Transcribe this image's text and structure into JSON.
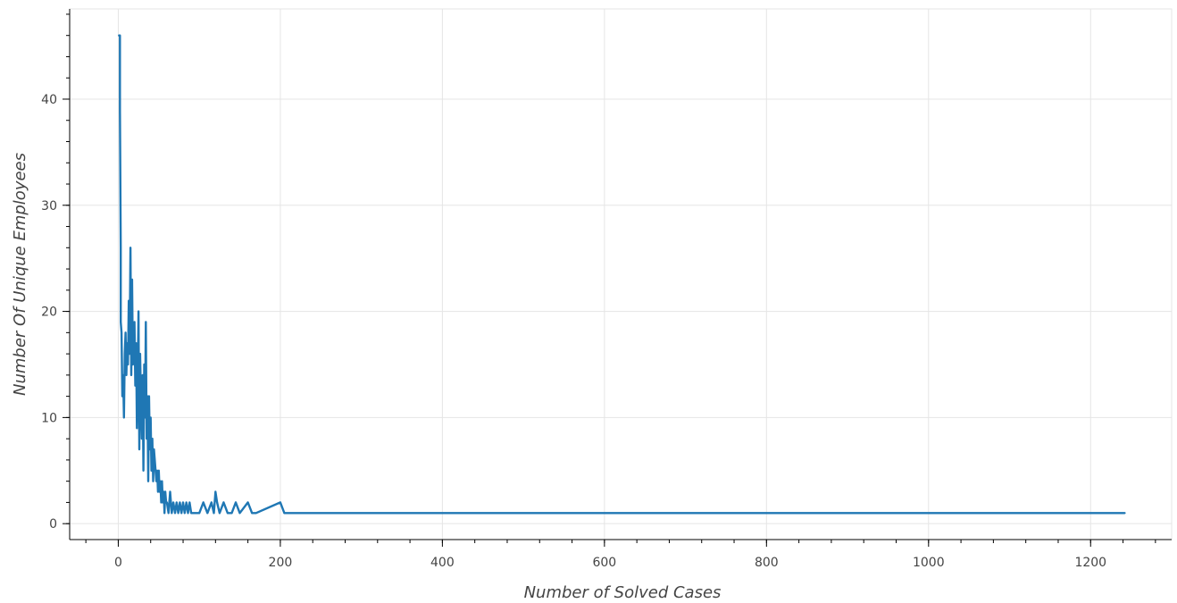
{
  "chart_data": {
    "type": "line",
    "title": "",
    "xlabel": "Number of Solved Cases",
    "ylabel": "Number Of Unique Employees",
    "xlim": [
      -60,
      1300
    ],
    "ylim": [
      -1.5,
      48.5
    ],
    "x_ticks": [
      0,
      200,
      400,
      600,
      800,
      1000,
      1200
    ],
    "y_ticks": [
      0,
      10,
      20,
      30,
      40
    ],
    "x_ticks_minor_step": 40,
    "y_ticks_minor_step": 2,
    "grid": true,
    "color": "#1f77b4",
    "series": [
      {
        "x": [
          1,
          2,
          2,
          3,
          3,
          4,
          5,
          6,
          7,
          8,
          9,
          10,
          11,
          12,
          13,
          14,
          15,
          16,
          17,
          18,
          19,
          20,
          21,
          22,
          23,
          24,
          25,
          26,
          27,
          28,
          29,
          30,
          31,
          32,
          33,
          34,
          35,
          36,
          37,
          38,
          39,
          40,
          41,
          42,
          43,
          44,
          45,
          46,
          47,
          48,
          49,
          50,
          51,
          52,
          53,
          54,
          55,
          56,
          57,
          58,
          59,
          60,
          62,
          64,
          66,
          68,
          70,
          72,
          74,
          76,
          78,
          80,
          82,
          84,
          86,
          88,
          90,
          95,
          100,
          105,
          110,
          115,
          118,
          120,
          122,
          125,
          130,
          135,
          140,
          145,
          150,
          160,
          165,
          170,
          200,
          205,
          210,
          1242
        ],
        "y": [
          46,
          46,
          39,
          26,
          19,
          18,
          12,
          14,
          10,
          16,
          18,
          14,
          17,
          15,
          21,
          16,
          26,
          14,
          23,
          15,
          16,
          19,
          13,
          17,
          9,
          14,
          20,
          7,
          16,
          12,
          8,
          14,
          5,
          15,
          10,
          19,
          8,
          12,
          4,
          12,
          7,
          10,
          5,
          8,
          4,
          7,
          6,
          5,
          4,
          5,
          3,
          5,
          3,
          4,
          2,
          4,
          2,
          3,
          1,
          3,
          2,
          2,
          1,
          3,
          1,
          2,
          1,
          2,
          1,
          2,
          1,
          2,
          1,
          2,
          1,
          2,
          1,
          1,
          1,
          2,
          1,
          2,
          1,
          3,
          2,
          1,
          2,
          1,
          1,
          2,
          1,
          2,
          1,
          1,
          2,
          1,
          1,
          1
        ]
      }
    ]
  }
}
